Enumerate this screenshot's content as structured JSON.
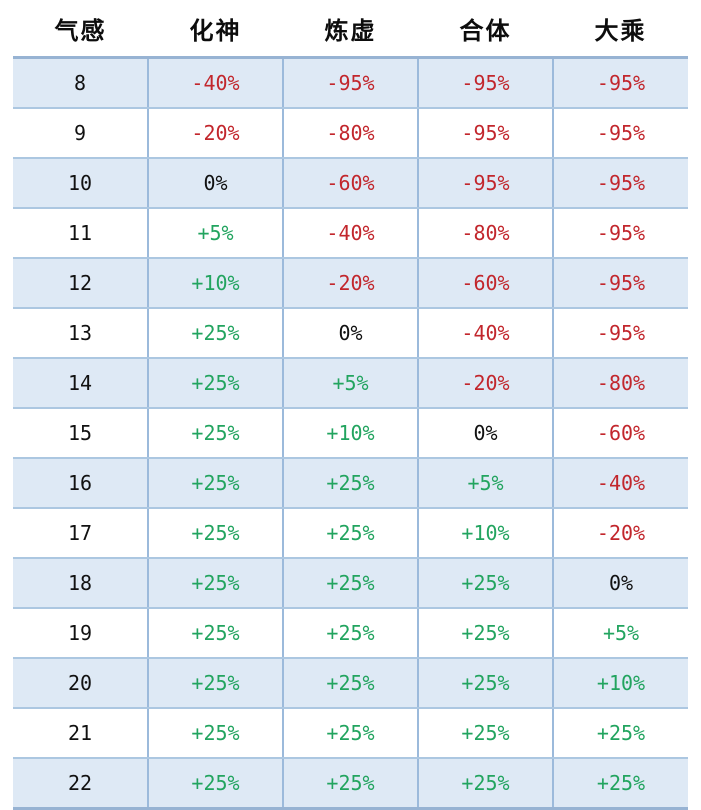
{
  "chart_data": {
    "type": "table",
    "columns": [
      "气感",
      "化神",
      "炼虚",
      "合体",
      "大乘"
    ],
    "rows": [
      {
        "level": "8",
        "values": [
          "-40%",
          "-95%",
          "-95%",
          "-95%"
        ]
      },
      {
        "level": "9",
        "values": [
          "-20%",
          "-80%",
          "-95%",
          "-95%"
        ]
      },
      {
        "level": "10",
        "values": [
          "0%",
          "-60%",
          "-95%",
          "-95%"
        ]
      },
      {
        "level": "11",
        "values": [
          "+5%",
          "-40%",
          "-80%",
          "-95%"
        ]
      },
      {
        "level": "12",
        "values": [
          "+10%",
          "-20%",
          "-60%",
          "-95%"
        ]
      },
      {
        "level": "13",
        "values": [
          "+25%",
          "0%",
          "-40%",
          "-95%"
        ]
      },
      {
        "level": "14",
        "values": [
          "+25%",
          "+5%",
          "-20%",
          "-80%"
        ]
      },
      {
        "level": "15",
        "values": [
          "+25%",
          "+10%",
          "0%",
          "-60%"
        ]
      },
      {
        "level": "16",
        "values": [
          "+25%",
          "+25%",
          "+5%",
          "-40%"
        ]
      },
      {
        "level": "17",
        "values": [
          "+25%",
          "+25%",
          "+10%",
          "-20%"
        ]
      },
      {
        "level": "18",
        "values": [
          "+25%",
          "+25%",
          "+25%",
          "0%"
        ]
      },
      {
        "level": "19",
        "values": [
          "+25%",
          "+25%",
          "+25%",
          "+5%"
        ]
      },
      {
        "level": "20",
        "values": [
          "+25%",
          "+25%",
          "+25%",
          "+10%"
        ]
      },
      {
        "level": "21",
        "values": [
          "+25%",
          "+25%",
          "+25%",
          "+25%"
        ]
      },
      {
        "level": "22",
        "values": [
          "+25%",
          "+25%",
          "+25%",
          "+25%"
        ]
      }
    ],
    "layout_hints": {
      "alternating_rows": true,
      "grid": true,
      "first_alt_row_shaded": true
    }
  },
  "colors": {
    "negative_value": "#C2262C",
    "positive_value": "#22A45F",
    "zero_value": "#111111",
    "alt_row_background": "#DEE9F5",
    "grid_border": "#ACC7E1",
    "vertical_grid_border": "#9CBADB",
    "outer_border": "#97B3D3"
  }
}
